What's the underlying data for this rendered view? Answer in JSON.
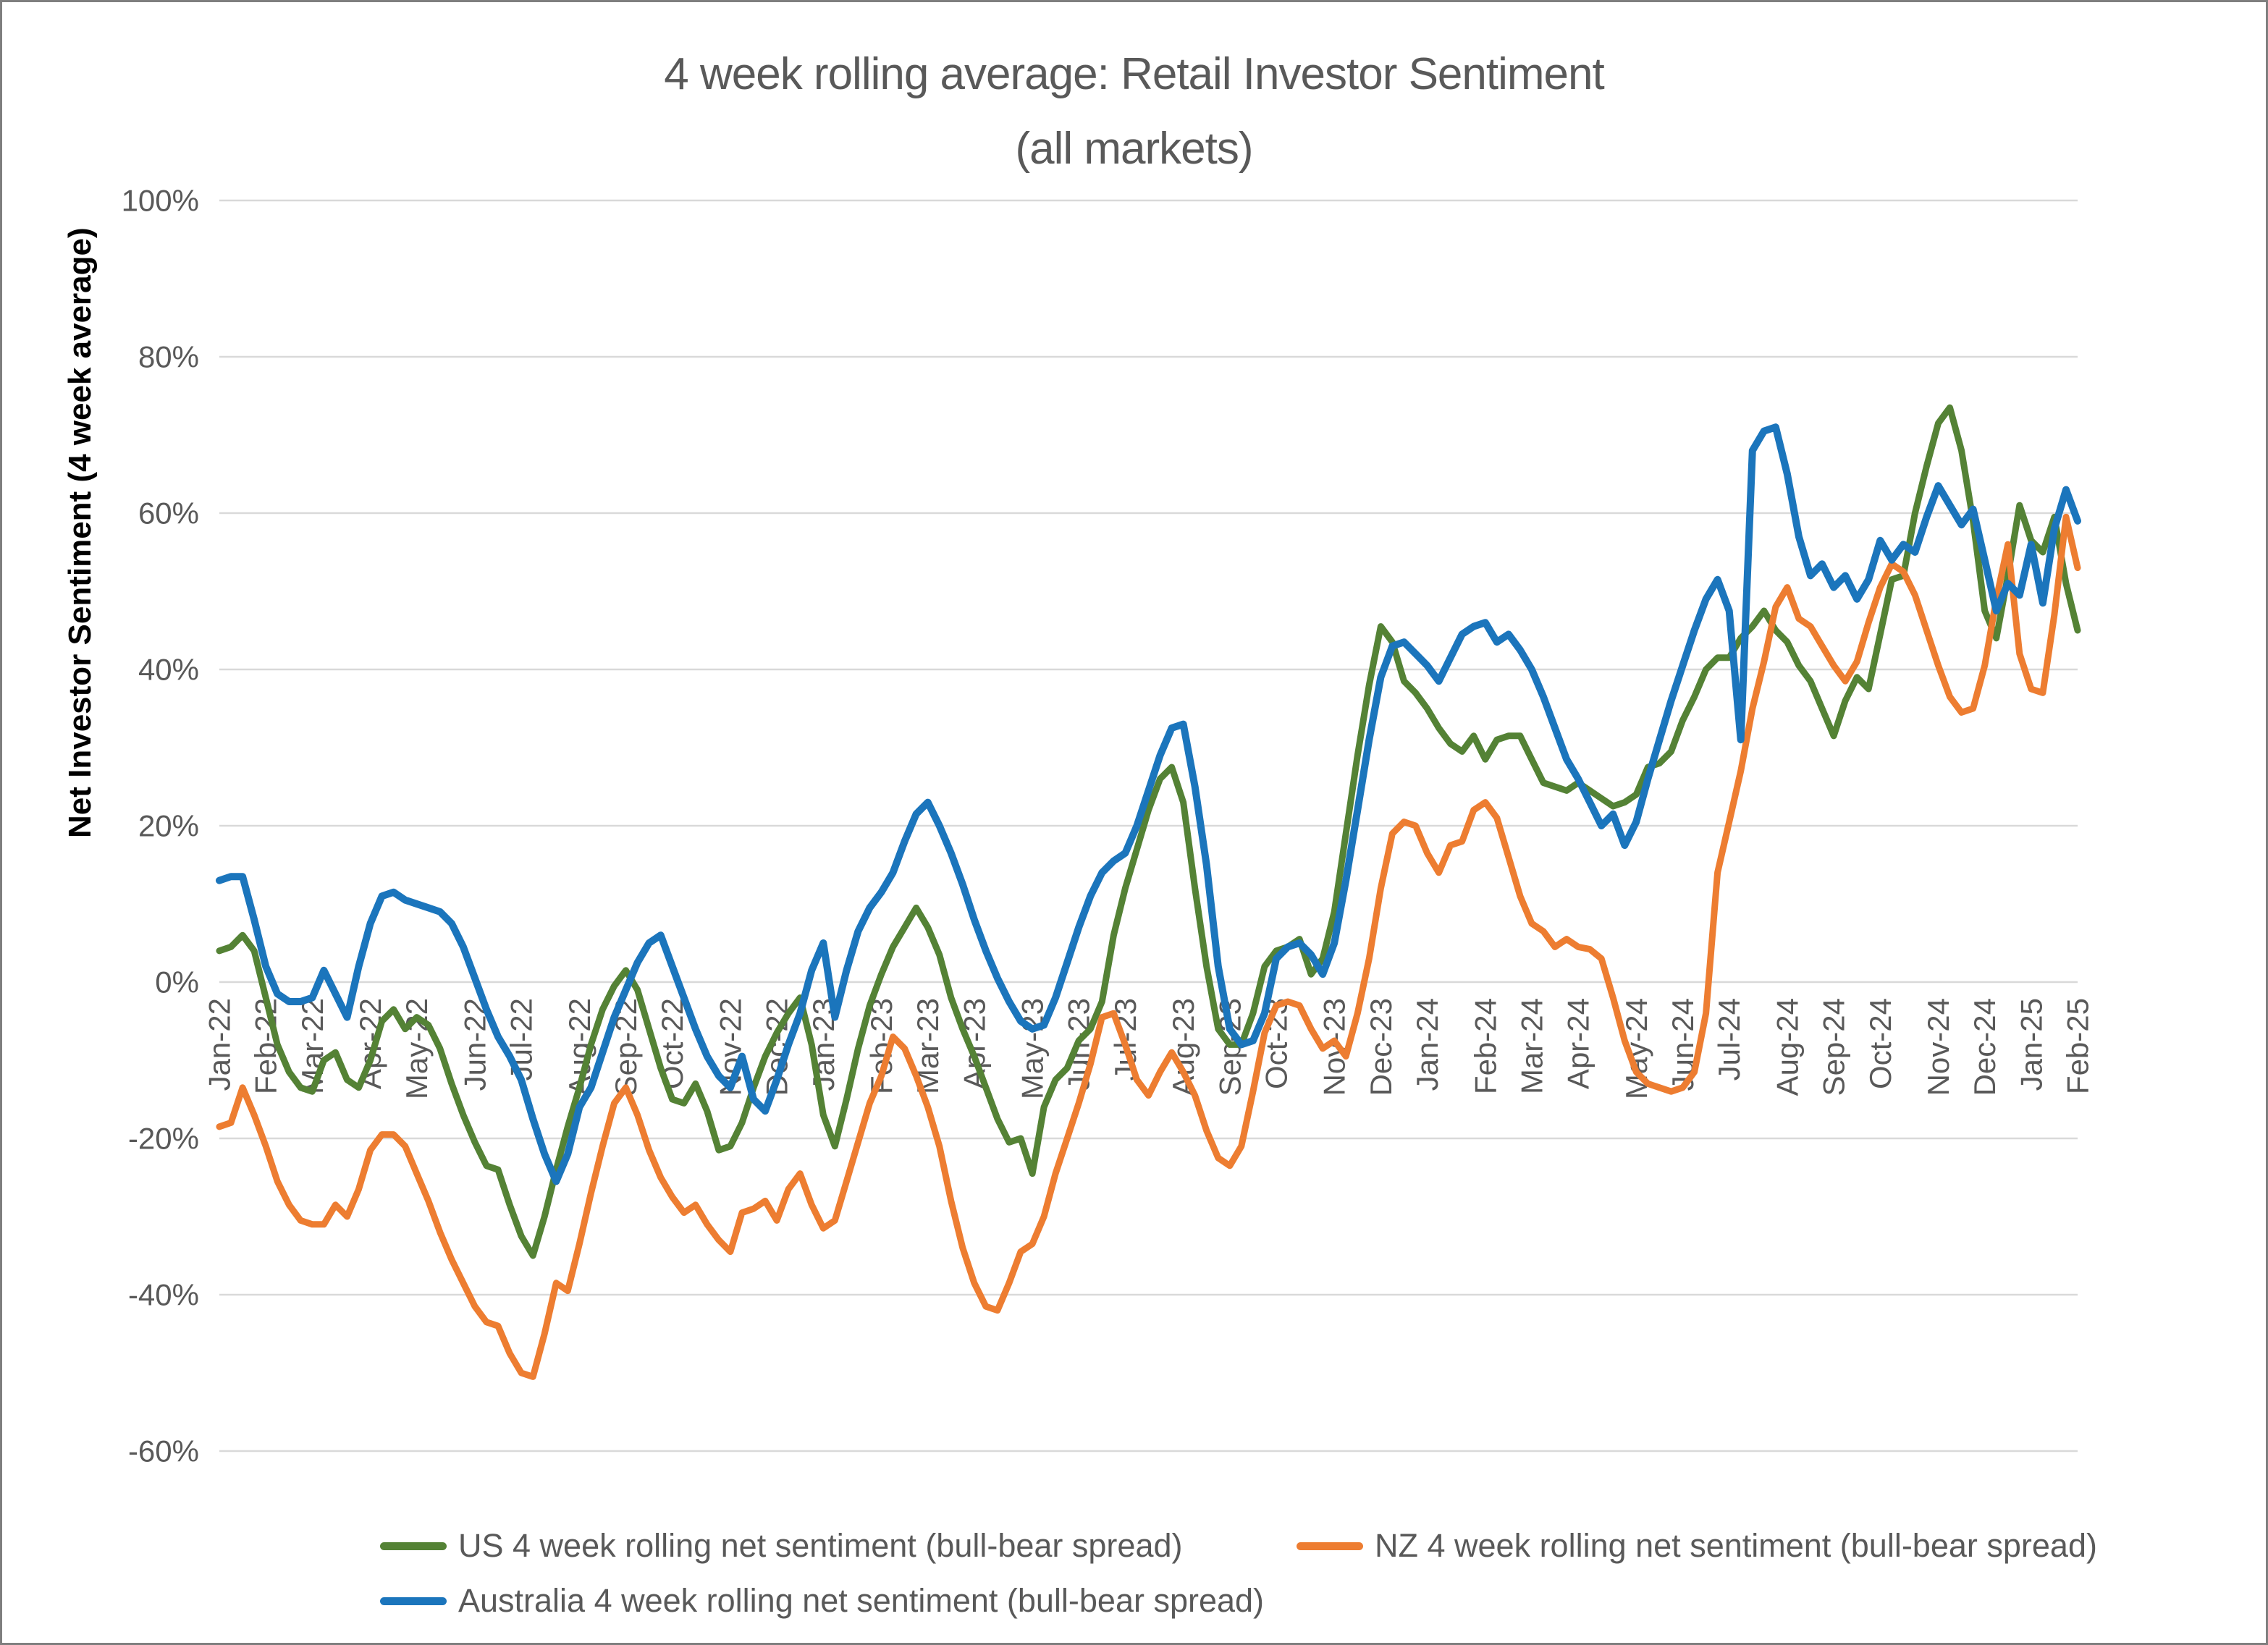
{
  "chart_data": {
    "type": "line",
    "title_line1": "4 week rolling average: Retail Investor Sentiment",
    "title_line2": "(all markets)",
    "ylabel": "Net Investor Sentiment (4 week average)",
    "ylim": [
      -60,
      100
    ],
    "ytick_step": 20,
    "ytick_labels": [
      "100%",
      "80%",
      "60%",
      "40%",
      "20%",
      "0%",
      "-20%",
      "-40%",
      "-60%"
    ],
    "grid": true,
    "legend_position": "bottom",
    "x_tick_labels": [
      "Jan-22",
      "Feb-22",
      "Mar-22",
      "Apr-22",
      "May-22",
      "Jun-22",
      "Jul-22",
      "Aug-22",
      "Sep-22",
      "Oct-22",
      "Nov-22",
      "Dec-22",
      "Jan-23",
      "Feb-23",
      "Mar-23",
      "Apr-23",
      "May-23",
      "Jun-23",
      "Jul-23",
      "Aug-23",
      "Sep-23",
      "Oct-23",
      "Nov-23",
      "Dec-23",
      "Jan-24",
      "Feb-24",
      "Mar-24",
      "Apr-24",
      "May-24",
      "Jun-24",
      "Jul-24",
      "Aug-24",
      "Sep-24",
      "Oct-24",
      "Nov-24",
      "Dec-24",
      "Jan-25",
      "Feb-25"
    ],
    "x_tick_indices": [
      0,
      4,
      8,
      13,
      17,
      22,
      26,
      31,
      35,
      39,
      44,
      48,
      52,
      57,
      61,
      65,
      70,
      74,
      78,
      83,
      87,
      91,
      96,
      100,
      104,
      109,
      113,
      117,
      122,
      126,
      130,
      135,
      139,
      143,
      148,
      152,
      156,
      160
    ],
    "colors": {
      "grid": "#d9d9d9",
      "text": "#595959",
      "axis_title": "#000000"
    },
    "series": [
      {
        "name": "US 4 week rolling net sentiment (bull-bear spread)",
        "color": "#548235",
        "stroke_width": 9,
        "values": [
          4,
          4.5,
          6,
          4,
          -2,
          -8,
          -11.5,
          -13.5,
          -14,
          -10,
          -9,
          -12.5,
          -13.5,
          -10,
          -5,
          -3.5,
          -6,
          -4.5,
          -5.5,
          -8.5,
          -13,
          -17,
          -20.5,
          -23.5,
          -24,
          -28.5,
          -32.5,
          -35,
          -30,
          -24,
          -18.5,
          -13.5,
          -8,
          -3.5,
          -0.5,
          1.5,
          -1,
          -6,
          -11,
          -15,
          -15.5,
          -13,
          -16.5,
          -21.5,
          -21,
          -18,
          -13.5,
          -9.5,
          -6.5,
          -4,
          -2,
          -8,
          -17,
          -21,
          -15,
          -8.5,
          -3,
          1,
          4.5,
          7,
          9.5,
          7,
          3.5,
          -2,
          -6,
          -9.5,
          -13.5,
          -17.5,
          -20.5,
          -20,
          -24.5,
          -16,
          -12.5,
          -11,
          -7.5,
          -6,
          -2.5,
          6,
          12,
          17,
          22,
          26,
          27.5,
          23,
          12,
          2,
          -6,
          -8,
          -8,
          -4,
          2,
          4,
          4.5,
          5.5,
          1,
          3,
          9,
          19,
          29,
          38,
          45.5,
          43.5,
          38.5,
          37,
          35,
          32.5,
          30.5,
          29.5,
          31.5,
          28.5,
          31,
          31.5,
          31.5,
          28.5,
          25.5,
          25,
          24.5,
          25.5,
          24.5,
          23.5,
          22.5,
          23,
          24,
          27.5,
          28,
          29.5,
          33.5,
          36.5,
          40,
          41.5,
          41.5,
          44,
          45.5,
          47.5,
          45,
          43.5,
          40.5,
          38.5,
          35,
          31.5,
          36,
          39,
          37.5,
          44.5,
          51.5,
          52,
          60,
          66,
          71.5,
          73.5,
          68,
          59,
          47.5,
          44,
          52,
          61,
          56.5,
          55,
          59.5,
          51,
          45
        ]
      },
      {
        "name": "NZ 4 week rolling net sentiment (bull-bear spread)",
        "color": "#ED7D31",
        "stroke_width": 9,
        "values": [
          -18.5,
          -18,
          -13.5,
          -17,
          -21,
          -25.5,
          -28.5,
          -30.5,
          -31,
          -31,
          -28.5,
          -30,
          -26.5,
          -21.5,
          -19.5,
          -19.5,
          -21,
          -24.5,
          -28,
          -32,
          -35.5,
          -38.5,
          -41.5,
          -43.5,
          -44,
          -47.5,
          -50,
          -50.5,
          -45,
          -38.5,
          -39.5,
          -33.5,
          -27,
          -21,
          -15.5,
          -13.5,
          -17,
          -21.5,
          -25,
          -27.5,
          -29.5,
          -28.5,
          -31,
          -33,
          -34.5,
          -29.5,
          -29,
          -28,
          -30.5,
          -26.5,
          -24.5,
          -28.5,
          -31.5,
          -30.5,
          -25.5,
          -20.5,
          -15.5,
          -12,
          -7,
          -8.5,
          -12,
          -16,
          -21,
          -28,
          -34,
          -38.5,
          -41.5,
          -42,
          -38.5,
          -34.5,
          -33.5,
          -30,
          -24.5,
          -20,
          -15.5,
          -10.5,
          -4.5,
          -4,
          -8,
          -12.5,
          -14.5,
          -11.5,
          -9,
          -11.5,
          -14.5,
          -19,
          -22.5,
          -23.5,
          -21,
          -14,
          -6.5,
          -3,
          -2.5,
          -3,
          -6,
          -8.5,
          -7.5,
          -9.5,
          -4,
          3,
          12,
          19,
          20.5,
          20,
          16.5,
          14,
          17.5,
          18,
          22,
          23,
          21,
          16,
          11,
          7.5,
          6.5,
          4.5,
          5.5,
          4.5,
          4.2,
          3,
          -2,
          -7.5,
          -11.5,
          -13,
          -13.5,
          -14,
          -13.5,
          -11.5,
          -4,
          14,
          20.5,
          27,
          35,
          41,
          48,
          50.5,
          46.5,
          45.5,
          43,
          40.5,
          38.5,
          41,
          46,
          50.5,
          53.5,
          52.5,
          49.5,
          45,
          40.5,
          36.5,
          34.5,
          35,
          40.5,
          49,
          56,
          42,
          37.5,
          37,
          47,
          59.5,
          53
        ]
      },
      {
        "name": "Australia 4 week rolling net sentiment (bull-bear spread)",
        "color": "#1B75BC",
        "stroke_width": 10,
        "values": [
          13,
          13.5,
          13.5,
          8,
          2,
          -1.5,
          -2.5,
          -2.5,
          -2,
          1.5,
          -1.5,
          -4.5,
          2,
          7.5,
          11,
          11.5,
          10.5,
          10,
          9.5,
          9,
          7.5,
          4.5,
          0.5,
          -3.5,
          -7,
          -9.5,
          -12.5,
          -17.5,
          -22,
          -25.5,
          -22,
          -16,
          -13.5,
          -9,
          -4.5,
          -1,
          2.5,
          5,
          6,
          2,
          -2,
          -6,
          -9.5,
          -12,
          -13.5,
          -9.5,
          -15,
          -16.5,
          -12.5,
          -8,
          -4,
          1.5,
          5,
          -4.5,
          1.5,
          6.5,
          9.5,
          11.5,
          14,
          18,
          21.5,
          23,
          20,
          16.5,
          12.5,
          8,
          4,
          0.5,
          -2.5,
          -5,
          -6,
          -5.5,
          -2,
          2.5,
          7,
          11,
          14,
          15.5,
          16.5,
          20,
          24.5,
          29,
          32.5,
          33,
          25,
          15,
          2,
          -6,
          -8,
          -7.5,
          -4,
          3,
          4.5,
          5,
          3.5,
          1,
          5,
          13,
          22,
          31,
          39,
          43,
          43.5,
          42,
          40.5,
          38.5,
          41.5,
          44.5,
          45.5,
          46,
          43.5,
          44.5,
          42.5,
          40,
          36.5,
          32.5,
          28.5,
          26,
          23,
          20,
          21.5,
          17.5,
          20.5,
          26,
          31,
          36,
          40.5,
          45,
          49,
          51.5,
          47.5,
          31,
          68,
          70.5,
          71,
          65,
          57,
          52,
          53.5,
          50.5,
          52,
          49,
          51.5,
          56.5,
          54,
          56,
          55,
          59.5,
          63.5,
          61,
          58.5,
          60.5,
          54,
          47.5,
          51,
          49.5,
          56,
          48.5,
          58,
          63,
          59
        ]
      }
    ]
  }
}
